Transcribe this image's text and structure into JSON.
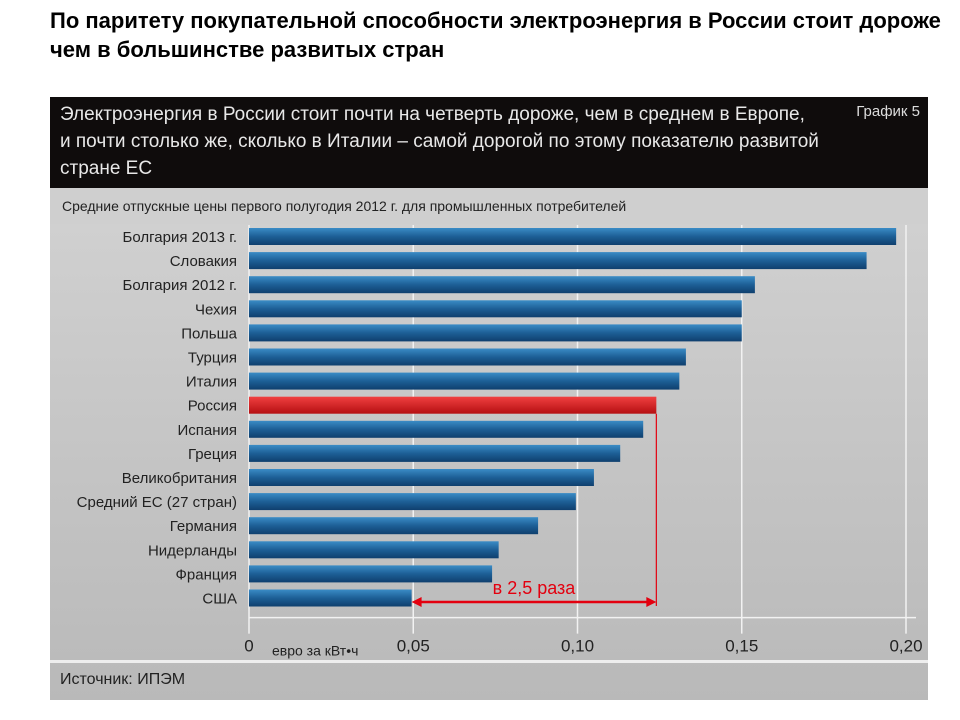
{
  "slide_title": "По паритету покупательной способности электроэнергия в России стоит дороже чем в большинстве развитых стран",
  "figure": {
    "header": "Электроэнергия в России стоит почти на четверть дороже, чем в среднем в Европе, и почти столько же, сколько в Италии – самой дорогой по этому показателю развитой стране ЕС",
    "tag": "График 5",
    "source": "Источник: ИПЭМ"
  },
  "chart_data": {
    "type": "bar",
    "orientation": "horizontal",
    "title": "Средние отпускные цены первого полугодия 2012 г. для промышленных потребителей",
    "xlabel": "евро за кВт•ч",
    "xlim": [
      0,
      0.2
    ],
    "ticks": [
      0,
      0.05,
      0.1,
      0.15,
      0.2
    ],
    "tick_labels": [
      "0",
      "0,05",
      "0,10",
      "0,15",
      "0,20"
    ],
    "categories": [
      "Болгария 2013 г.",
      "Словакия",
      "Болгария 2012 г.",
      "Чехия",
      "Польша",
      "Турция",
      "Италия",
      "Россия",
      "Испания",
      "Греция",
      "Великобритания",
      "Средний ЕС (27 стран)",
      "Германия",
      "Нидерланды",
      "Франция",
      "США"
    ],
    "values": [
      0.197,
      0.188,
      0.154,
      0.15,
      0.15,
      0.133,
      0.131,
      0.124,
      0.12,
      0.113,
      0.105,
      0.0995,
      0.088,
      0.076,
      0.074,
      0.0495
    ],
    "highlight": "Россия",
    "colors": {
      "bar": "#1d5f96",
      "highlight": "#d8181c",
      "annotation": "#e3000f"
    },
    "annotation": {
      "text": "в 2,5 раза",
      "from": "США",
      "to": "Россия"
    },
    "grid": true
  }
}
